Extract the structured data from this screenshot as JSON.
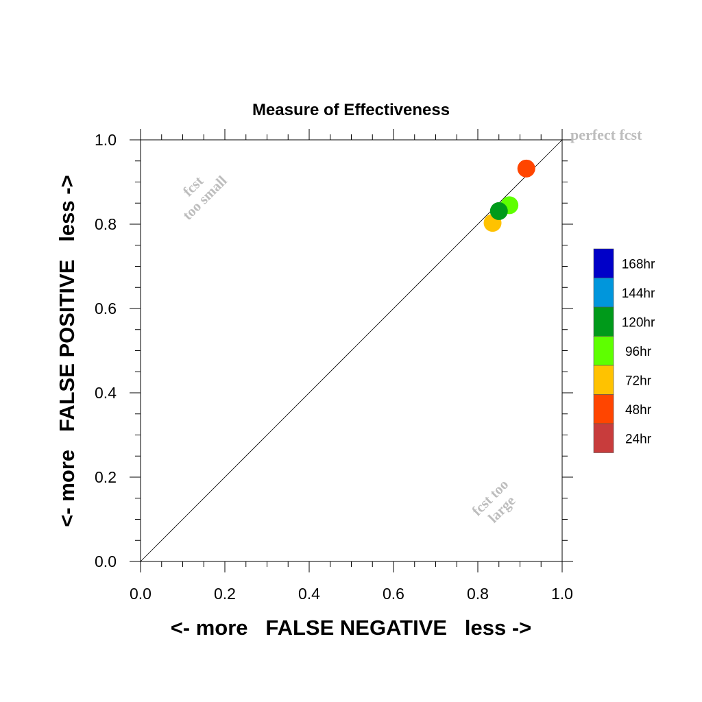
{
  "chart_data": {
    "type": "scatter",
    "title": "Measure of Effectiveness",
    "xlabel": "<- more   FALSE NEGATIVE   less ->",
    "ylabel": "<- more   FALSE POSITIVE   less ->",
    "xlim": [
      0.0,
      1.0
    ],
    "ylim": [
      0.0,
      1.0
    ],
    "x_ticks": [
      "0.0",
      "0.2",
      "0.4",
      "0.6",
      "0.8",
      "1.0"
    ],
    "y_ticks": [
      "0.0",
      "0.2",
      "0.4",
      "0.6",
      "0.8",
      "1.0"
    ],
    "grid": false,
    "diagonal_reference_line": true,
    "annotations": {
      "perfect": "perfect fcst",
      "too_small_line1": "fcst",
      "too_small_line2": "too small",
      "too_large_line1": "fcst too",
      "too_large_line2": "large"
    },
    "annotation_color": "#bdbdbd",
    "points": [
      {
        "label": "72hr",
        "x": 0.835,
        "y": 0.803,
        "color": "#ffc200"
      },
      {
        "label": "96hr",
        "x": 0.875,
        "y": 0.845,
        "color": "#5eff00"
      },
      {
        "label": "120hr",
        "x": 0.85,
        "y": 0.831,
        "color": "#009a1a"
      },
      {
        "label": "48hr",
        "x": 0.915,
        "y": 0.932,
        "color": "#ff4500"
      }
    ],
    "legend": {
      "placement": "right",
      "items": [
        {
          "label": "168hr",
          "color": "#0000c8"
        },
        {
          "label": "144hr",
          "color": "#0096dc"
        },
        {
          "label": "120hr",
          "color": "#009a1a"
        },
        {
          "label": "96hr",
          "color": "#5eff00"
        },
        {
          "label": "72hr",
          "color": "#ffc200"
        },
        {
          "label": "48hr",
          "color": "#ff4500"
        },
        {
          "label": "24hr",
          "color": "#c83c3c"
        }
      ]
    }
  }
}
